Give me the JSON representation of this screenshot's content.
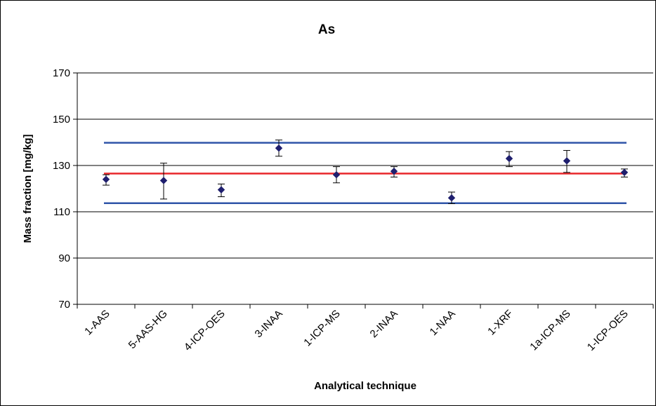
{
  "chart_data": {
    "type": "scatter",
    "title": "As",
    "xlabel": "Analytical technique",
    "ylabel": "Mass fraction [mg/kg]",
    "ylim": [
      70,
      170
    ],
    "yticks": [
      70,
      90,
      110,
      130,
      150,
      170
    ],
    "grid": "horizontal",
    "categories": [
      "1-AAS",
      "5-AAS-HG",
      "4-ICP-OES",
      "3-INAA",
      "1-ICP-MS",
      "2-INAA",
      "1-NAA",
      "1-XRF",
      "1a-ICP-MS",
      "1-ICP-OES"
    ],
    "series": [
      {
        "color": "#1f1f6e",
        "marker": "diamond",
        "values": [
          124.0,
          123.5,
          119.5,
          137.5,
          126.0,
          127.5,
          116.0,
          133.0,
          132.0,
          127.0
        ],
        "err_low": [
          2.5,
          8.0,
          3.0,
          3.5,
          3.5,
          2.5,
          2.5,
          3.5,
          5.0,
          2.0
        ],
        "err_high": [
          2.0,
          7.5,
          2.5,
          3.5,
          3.5,
          2.0,
          2.5,
          3.0,
          4.5,
          1.5
        ]
      }
    ],
    "reference_lines": [
      {
        "value": 126.5,
        "color": "#e8262a"
      },
      {
        "value": 139.8,
        "color": "#2f54a8"
      },
      {
        "value": 113.7,
        "color": "#2f54a8"
      }
    ]
  }
}
